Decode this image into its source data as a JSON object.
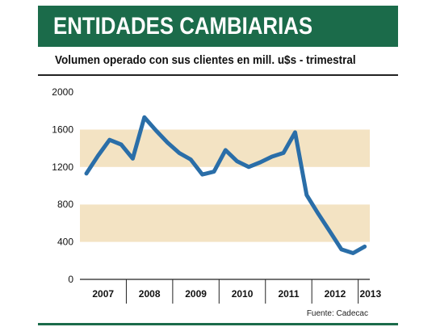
{
  "header": {
    "title": "ENTIDADES CAMBIARIAS",
    "subtitle": "Volumen operado con sus clientes en mill. u$s - trimestral",
    "source": "Fuente: Cadecac"
  },
  "colors": {
    "brand": "#1b6b4a",
    "band": "#f3e3c3",
    "line": "#2a6ea8"
  },
  "chart_data": {
    "type": "line",
    "title": "Volumen operado con sus clientes en mill. u$s - trimestral",
    "xlabel": "",
    "ylabel": "",
    "ylim": [
      0,
      2000
    ],
    "yticks": [
      "2000",
      "1600",
      "1200",
      "800",
      "400",
      "0"
    ],
    "ytick_values": [
      2000,
      1600,
      1200,
      800,
      400,
      0
    ],
    "years": [
      "2007",
      "2008",
      "2009",
      "2010",
      "2011",
      "2012",
      "2013"
    ],
    "grid": "alternating horizontal bands",
    "series": [
      {
        "quarters": [
          "2007-Q1",
          "2007-Q2",
          "2007-Q3",
          "2007-Q4",
          "2008-Q1",
          "2008-Q2",
          "2008-Q3",
          "2008-Q4",
          "2009-Q1",
          "2009-Q2",
          "2009-Q3",
          "2009-Q4",
          "2010-Q1",
          "2010-Q2",
          "2010-Q3",
          "2010-Q4",
          "2011-Q1",
          "2011-Q2",
          "2011-Q3",
          "2011-Q4",
          "2012-Q1",
          "2012-Q2",
          "2012-Q3",
          "2012-Q4",
          "2013-Q1"
        ],
        "values": [
          1130,
          1320,
          1490,
          1440,
          1290,
          1730,
          1590,
          1460,
          1350,
          1280,
          1120,
          1150,
          1380,
          1260,
          1200,
          1250,
          1310,
          1350,
          1570,
          900,
          700,
          510,
          320,
          280,
          350
        ]
      }
    ]
  }
}
